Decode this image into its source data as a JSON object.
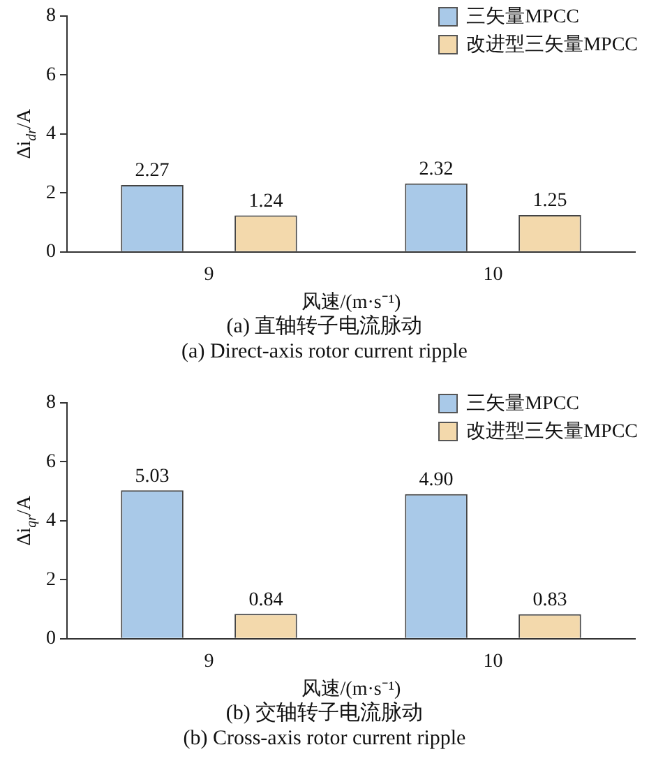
{
  "chart_data": [
    {
      "type": "bar",
      "title": "(a) 直轴转子电流脉动",
      "subtitle": "(a) Direct-axis rotor current ripple",
      "xlabel": "风速/(m·s⁻¹)",
      "ylabel": "Δi$_{dr}$/A",
      "categories": [
        "9",
        "10"
      ],
      "series": [
        {
          "name": "三矢量MPCC",
          "color": "#a9c9e8",
          "values": [
            2.27,
            2.32
          ]
        },
        {
          "name": "改进型三矢量MPCC",
          "color": "#f3d9ac",
          "values": [
            1.24,
            1.25
          ]
        }
      ],
      "ylim": [
        0,
        8
      ],
      "yticks": [
        0,
        2,
        4,
        6,
        8
      ],
      "grid": false,
      "legend": "top right",
      "data_labels": true
    },
    {
      "type": "bar",
      "title": "(b) 交轴转子电流脉动",
      "subtitle": "(b) Cross-axis rotor current ripple",
      "xlabel": "风速/(m·s⁻¹)",
      "ylabel": "Δi$_{qr}$/A",
      "categories": [
        "9",
        "10"
      ],
      "series": [
        {
          "name": "三矢量MPCC",
          "color": "#a9c9e8",
          "values": [
            5.03,
            4.9
          ],
          "value_labels": [
            "5.03",
            "4.90"
          ]
        },
        {
          "name": "改进型三矢量MPCC",
          "color": "#f3d9ac",
          "values": [
            0.84,
            0.83
          ]
        }
      ],
      "ylim": [
        0,
        8
      ],
      "yticks": [
        0,
        2,
        4,
        6,
        8
      ],
      "grid": false,
      "legend": "top right",
      "data_labels": true
    }
  ]
}
